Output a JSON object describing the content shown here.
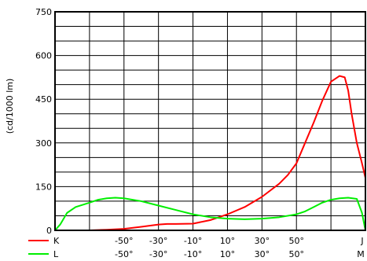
{
  "chart_data": {
    "type": "line",
    "ylabel": "(cd/1000 lm)",
    "ylim": [
      0,
      750
    ],
    "y_ticks": [
      0,
      150,
      300,
      450,
      600,
      750
    ],
    "xlim": [
      -90,
      90
    ],
    "x_grid_positions": [
      -90,
      -70,
      -50,
      -30,
      -10,
      10,
      30,
      50,
      70,
      90
    ],
    "x_tick_values": [
      -50,
      -30,
      -10,
      10,
      30,
      50
    ],
    "x_tick_labels_row1": [
      "-50°",
      "-30°",
      "-10°",
      "10°",
      "30°",
      "50°"
    ],
    "x_tick_labels_row2": [
      "-50°",
      "-30°",
      "-10°",
      "10°",
      "30°",
      "50°"
    ],
    "x_end_labels": {
      "row1": "J",
      "row2": "M"
    },
    "grid": true,
    "legend_placement": "bottom-left",
    "series": [
      {
        "name": "K",
        "color": "#ff0000",
        "x": [
          -90,
          -80,
          -70,
          -60,
          -50,
          -40,
          -30,
          -25,
          -20,
          -10,
          0,
          10,
          20,
          30,
          40,
          45,
          50,
          55,
          60,
          65,
          70,
          75,
          78,
          80,
          82,
          85,
          88,
          90
        ],
        "y": [
          0,
          0,
          0,
          2,
          5,
          12,
          20,
          22,
          22,
          23,
          35,
          55,
          80,
          115,
          160,
          190,
          230,
          300,
          370,
          445,
          510,
          530,
          525,
          480,
          400,
          300,
          230,
          180
        ]
      },
      {
        "name": "L",
        "color": "#00ee00",
        "x": [
          -90,
          -87,
          -83,
          -78,
          -70,
          -65,
          -60,
          -55,
          -50,
          -40,
          -30,
          -20,
          -10,
          0,
          10,
          20,
          30,
          40,
          50,
          55,
          60,
          65,
          70,
          75,
          80,
          85,
          88,
          90
        ],
        "y": [
          0,
          20,
          60,
          80,
          95,
          105,
          110,
          112,
          110,
          100,
          85,
          70,
          55,
          45,
          40,
          38,
          40,
          45,
          55,
          65,
          80,
          95,
          105,
          110,
          112,
          108,
          60,
          0
        ]
      }
    ]
  }
}
